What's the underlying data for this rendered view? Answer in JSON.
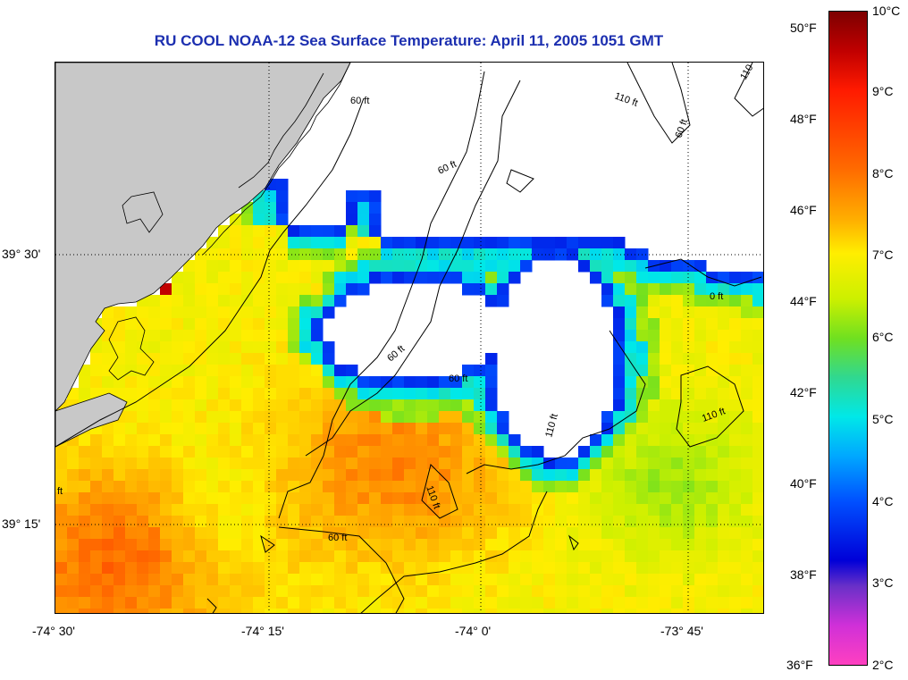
{
  "title": "RU COOL  NOAA-12  Sea Surface Temperature:  April 11, 2005 1051 GMT",
  "map": {
    "x_ticks": [
      "-74° 30'",
      "-74° 15'",
      "-74° 0'",
      "-73° 45'"
    ],
    "y_ticks": [
      "39° 30'",
      "39° 15'"
    ],
    "contour_labels": [
      "60 ft",
      "60 ft",
      "60 ft",
      "60 ft",
      "60 ft",
      "60 ft",
      "110 ft",
      "110 ft",
      "110 ft",
      "110 ft",
      "110",
      "0 ft",
      "ft"
    ],
    "colors": {
      "land": "#c8c8c8",
      "cloud": "#ffffff",
      "grid": "#000000"
    }
  },
  "colorbar": {
    "fahrenheit_labels": [
      "50°F",
      "48°F",
      "46°F",
      "44°F",
      "42°F",
      "40°F",
      "38°F",
      "36°F"
    ],
    "celsius_labels": [
      "10°C",
      "9°C",
      "8°C",
      "7°C",
      "6°C",
      "5°C",
      "4°C",
      "3°C",
      "2°C"
    ],
    "range_celsius": [
      2,
      10
    ],
    "range_fahrenheit": [
      36,
      50
    ]
  },
  "chart_data": {
    "type": "heatmap",
    "title": "RU COOL  NOAA-12  Sea Surface Temperature:  April 11, 2005 1051 GMT",
    "xlabel": "",
    "ylabel": "",
    "x_tick_labels": [
      "-74° 30'",
      "-74° 15'",
      "-74° 0'",
      "-73° 45'"
    ],
    "y_tick_labels": [
      "39° 30'",
      "39° 15'"
    ],
    "value_range_celsius": [
      2,
      10
    ],
    "grid": true
  }
}
